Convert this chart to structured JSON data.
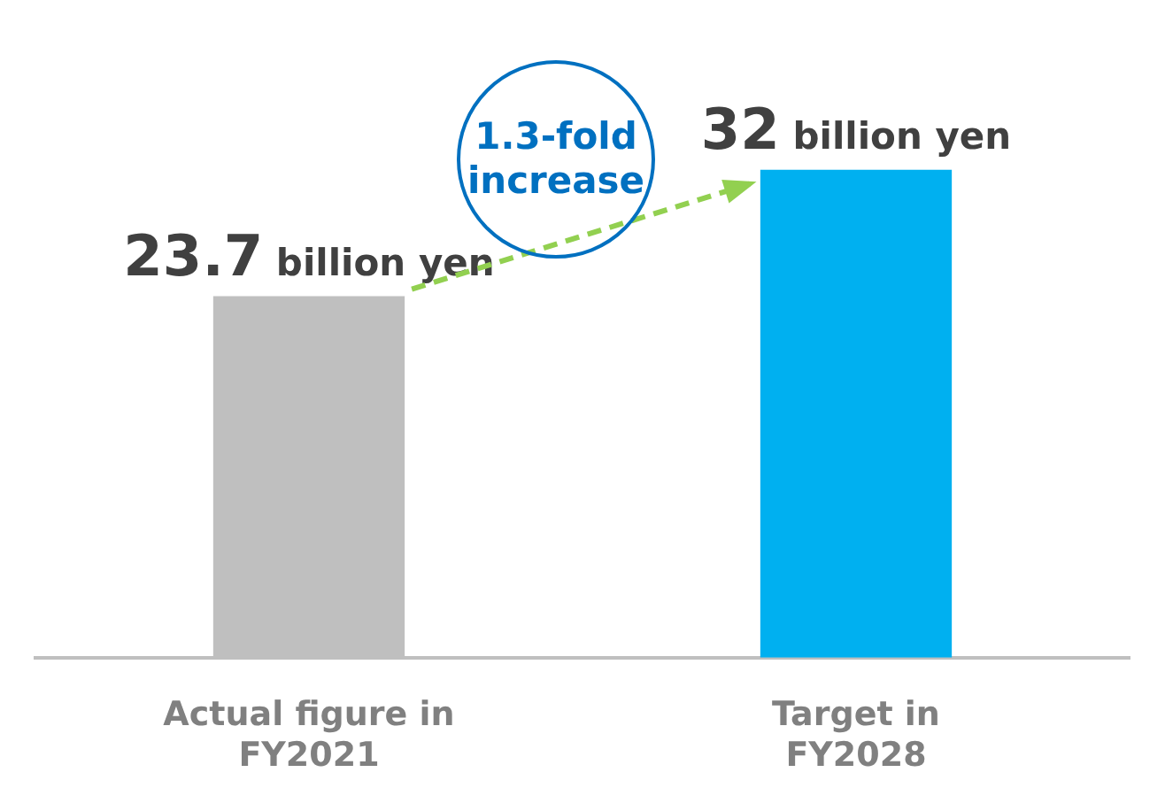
{
  "chart_data": {
    "type": "bar",
    "categories": [
      "Actual figure in FY2021",
      "Target in FY2028"
    ],
    "values": [
      23.7,
      32
    ],
    "colors": [
      "#bfbfbf",
      "#00b0f0"
    ],
    "value_labels": [
      "23.7 billion yen",
      "32 billion yen"
    ],
    "annotations": [
      "1.3-fold increase"
    ],
    "grid": false,
    "legend": false,
    "tick_labels": "x"
  }
}
